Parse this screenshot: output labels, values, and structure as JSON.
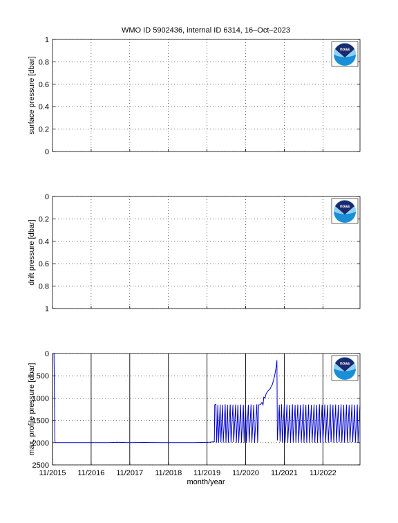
{
  "title": "WMO ID 5902436, internal ID 6314, 16–Oct–2023",
  "xlabel": "month/year",
  "logo_text": "noaa",
  "colors": {
    "line": "#0000cc",
    "logo_navy": "#1a2a6e",
    "logo_blue": "#1a8fd8",
    "logo_light": "#8fd0f3"
  },
  "x_ticks": [
    "11/2015",
    "11/2016",
    "11/2017",
    "11/2018",
    "11/2019",
    "11/2020",
    "11/2021",
    "11/2022"
  ],
  "chart_data": [
    {
      "type": "line",
      "title": "WMO ID 5902436, internal ID 6314, 16–Oct–2023",
      "ylabel": "surface pressure [dbar]",
      "xlabel": "",
      "ylim": [
        0,
        1
      ],
      "y_reversed": false,
      "yticks": [
        "0",
        "0.2",
        "0.4",
        "0.6",
        "0.8",
        "1"
      ],
      "grid": true,
      "series": []
    },
    {
      "type": "line",
      "ylabel": "drift pressure [dbar]",
      "xlabel": "",
      "ylim": [
        0,
        1
      ],
      "y_reversed": true,
      "yticks": [
        "0",
        "0.2",
        "0.4",
        "0.6",
        "0.8",
        "1"
      ],
      "grid": true,
      "series": []
    },
    {
      "type": "line",
      "ylabel": "max. profile pressure [dbar]",
      "xlabel": "month/year",
      "xlim": [
        "2015-11",
        "2023-10"
      ],
      "ylim": [
        0,
        2500
      ],
      "y_reversed": true,
      "yticks": [
        "0",
        "500",
        "1000",
        "1500",
        "2000",
        "2500"
      ],
      "grid": true,
      "series": [
        {
          "x": [
            2015.87,
            2015.89,
            2015.9,
            2015.92,
            2016.5,
            2017.0,
            2017.3,
            2017.5,
            2017.8,
            2018.2,
            2018.6,
            2019.0,
            2019.5,
            2019.9,
            2020.02,
            2020.03,
            2020.06,
            2020.08,
            2020.11,
            2020.13,
            2020.17,
            2020.19,
            2020.23,
            2020.25,
            2020.3,
            2020.32,
            2020.36,
            2020.38,
            2020.43,
            2020.45,
            2020.5,
            2020.52,
            2020.57,
            2020.59,
            2020.63,
            2020.65,
            2020.7,
            2020.72,
            2020.77,
            2020.79,
            2020.83,
            2020.85,
            2020.9,
            2020.92,
            2020.97,
            2020.99,
            2021.04,
            2021.06,
            2021.12,
            2021.14,
            2021.17,
            2021.19,
            2021.22,
            2021.25,
            2021.28,
            2021.3,
            2021.33,
            2021.36,
            2021.4,
            2021.43,
            2021.46,
            2021.48,
            2021.5,
            2021.52,
            2021.55,
            2021.58,
            2021.62,
            2021.64,
            2021.65,
            2021.7,
            2021.72,
            2021.76,
            2021.78,
            2021.83,
            2021.85,
            2021.9,
            2021.92,
            2021.97,
            2021.99,
            2022.04,
            2022.06,
            2022.11,
            2022.13,
            2022.18,
            2022.2,
            2022.25,
            2022.27,
            2022.32,
            2022.34,
            2022.39,
            2022.41,
            2022.46,
            2022.48,
            2022.53,
            2022.55,
            2022.6,
            2022.62,
            2022.67,
            2022.69,
            2022.74,
            2022.76,
            2022.81,
            2022.83,
            2022.88,
            2022.9,
            2022.95,
            2022.97,
            2023.02,
            2023.04,
            2023.09,
            2023.11,
            2023.16,
            2023.18,
            2023.23,
            2023.25,
            2023.3,
            2023.32,
            2023.37,
            2023.39,
            2023.44,
            2023.46,
            2023.51,
            2023.53,
            2023.58,
            2023.6,
            2023.65,
            2023.67,
            2023.72,
            2023.74,
            2023.79
          ],
          "y": [
            0,
            1950,
            2000,
            2000,
            2000,
            2000,
            2000,
            1990,
            2000,
            1995,
            2000,
            2000,
            2000,
            1990,
            1980,
            1150,
            1140,
            2000,
            1150,
            2000,
            1145,
            1990,
            1150,
            2000,
            1140,
            2000,
            1150,
            2000,
            1145,
            2000,
            1150,
            1990,
            1145,
            2000,
            1150,
            2000,
            1145,
            2000,
            1150,
            2000,
            1140,
            2000,
            1150,
            1990,
            1145,
            2000,
            1150,
            2000,
            1140,
            1990,
            1150,
            1150,
            1140,
            1100,
            1150,
            980,
            1000,
            900,
            850,
            820,
            800,
            760,
            720,
            700,
            600,
            500,
            300,
            150,
            1950,
            1150,
            1980,
            1140,
            2000,
            1150,
            1990,
            1145,
            2000,
            1150,
            2000,
            1140,
            1990,
            1150,
            2000,
            1145,
            2000,
            1150,
            1990,
            1140,
            2000,
            1150,
            2000,
            1145,
            2000,
            1150,
            1990,
            1145,
            2000,
            1150,
            2000,
            1140,
            2000,
            1150,
            1990,
            1145,
            2000,
            1150,
            2000,
            1140,
            1990,
            1150,
            2000,
            1145,
            2000,
            1150,
            1990,
            1140,
            2000,
            1150,
            2000,
            1145,
            2000,
            1150,
            2000,
            1140,
            1990,
            1150,
            2000,
            1145,
            2000,
            1150
          ]
        }
      ]
    }
  ]
}
